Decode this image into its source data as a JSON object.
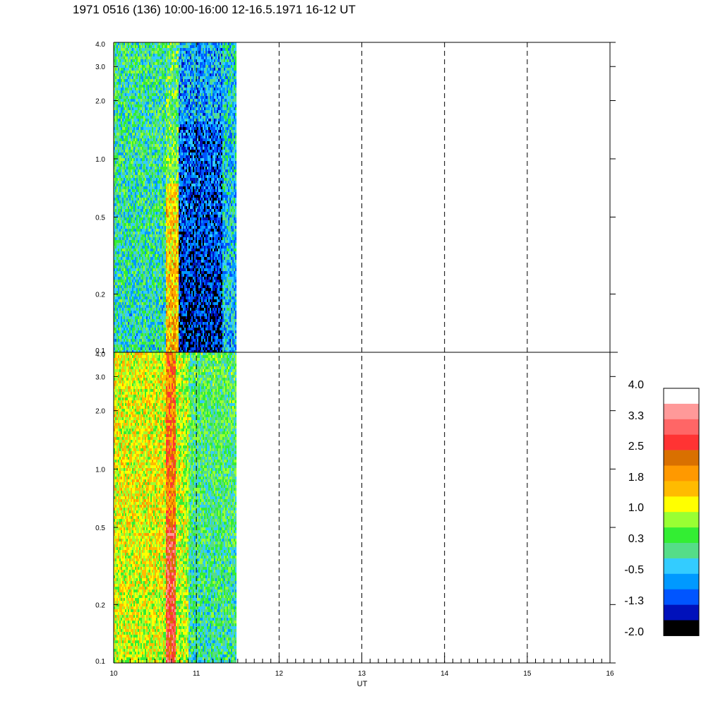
{
  "title": "1971 0516 (136) 10:00-16:00 12-16.5.1971  16-12 UT",
  "chart_data": {
    "type": "heatmap",
    "xlabel": "UT",
    "x_ticks": [
      "10",
      "11",
      "12",
      "13",
      "14",
      "15",
      "16"
    ],
    "xlim": [
      10,
      16
    ],
    "x_dashed_gridlines": [
      11,
      12,
      13,
      14,
      15
    ],
    "data_end_ut": 11.5,
    "y_scale": "log",
    "ylim": [
      0.1,
      4.0
    ],
    "y_ticks": [
      "0.1",
      "0.2",
      "0.5",
      "1.0",
      "2.0",
      "3.0",
      "4.0"
    ],
    "panels": [
      {
        "id": "upper",
        "dominant_values": "mostly -0.5 to 0.3 (cyan/green) with a band near 10.7 UT of 1.0 to 2.5 (yellow/orange) at low values, and -1.3 to -2.0 (blue) from about 10.8 to 11.3 UT below 1.0"
      },
      {
        "id": "lower",
        "dominant_values": "mostly 0.3 to 1.8 (green/yellow/orange) before 10.7 UT, a band of 2.5 to 3.3 (red) near 10.7 UT, and -0.5 to 0.3 (cyan/green) after 10.8 UT"
      }
    ],
    "colorbar": {
      "labels": [
        "4.0",
        "3.3",
        "2.5",
        "1.8",
        "1.0",
        "0.3",
        "-0.5",
        "-1.3",
        "-2.0"
      ],
      "colors": [
        "#ffffff",
        "#ff9999",
        "#ff6666",
        "#ff3333",
        "#d97000",
        "#ff9900",
        "#ffbb00",
        "#ffff00",
        "#99ff33",
        "#33ee33",
        "#55dd88",
        "#33ccff",
        "#0099ff",
        "#0055ff",
        "#0011bb",
        "#000000"
      ]
    }
  }
}
